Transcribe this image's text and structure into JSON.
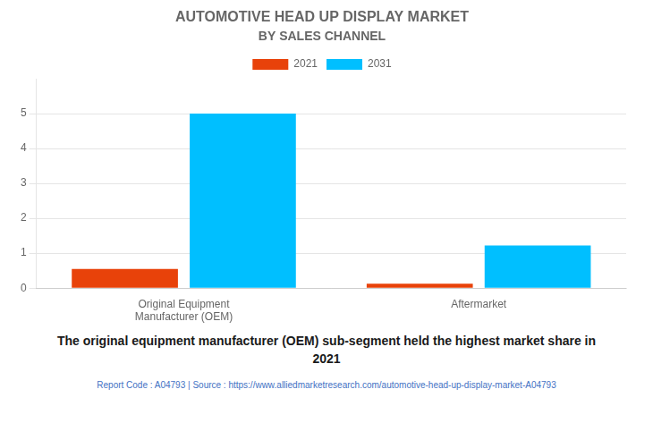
{
  "chart_data": {
    "type": "bar",
    "title": "AUTOMOTIVE HEAD UP DISPLAY MARKET",
    "subtitle": "BY SALES CHANNEL",
    "categories": [
      "Original Equipment\nManufacturer (OEM)",
      "Aftermarket"
    ],
    "series": [
      {
        "name": "2021",
        "color": "#E8420A",
        "values": [
          0.55,
          0.13
        ]
      },
      {
        "name": "2031",
        "color": "#00BFFF",
        "values": [
          5.0,
          1.22
        ]
      }
    ],
    "ylim": [
      0,
      6.0
    ],
    "yticks": [
      0,
      1,
      2,
      3,
      4,
      5
    ],
    "grid": true,
    "legend": "top",
    "caption": [
      "The original equipment manufacturer (OEM) sub-segment held the highest market share in",
      "2021"
    ],
    "footer": "Report Code : A04793  |  Source : https://www.alliedmarketresearch.com/automotive-head-up-display-market-A04793"
  }
}
